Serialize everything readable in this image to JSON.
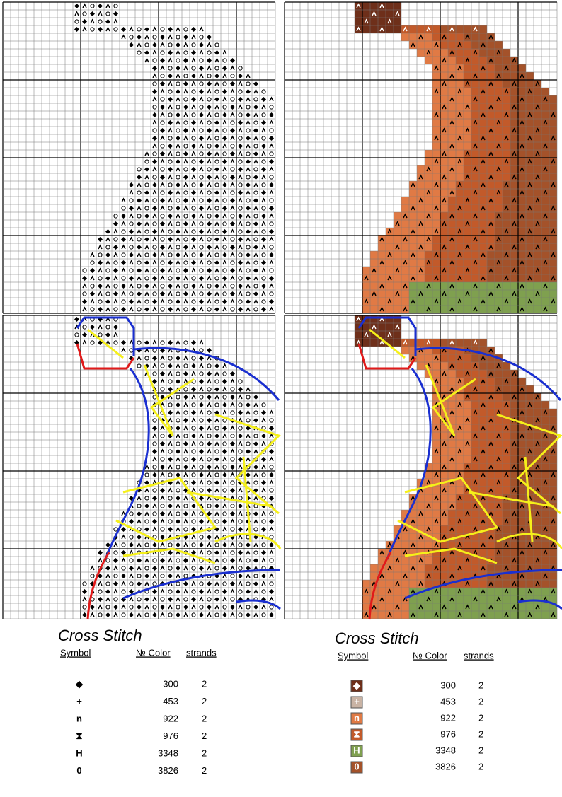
{
  "legends": [
    {
      "title": "Cross Stitch",
      "headers": [
        "Symbol",
        "№ Color",
        "strands"
      ],
      "rows": [
        {
          "symbol": "◆",
          "color": 300,
          "strands": 2
        },
        {
          "symbol": "+",
          "color": 453,
          "strands": 2
        },
        {
          "symbol": "n",
          "color": 922,
          "strands": 2
        },
        {
          "symbol": "⧗",
          "color": 976,
          "strands": 2
        },
        {
          "symbol": "H",
          "color": 3348,
          "strands": 2
        },
        {
          "symbol": "0",
          "color": 3826,
          "strands": 2
        }
      ]
    },
    {
      "title": "Cross Stitch",
      "headers": [
        "Symbol",
        "№ Color",
        "strands"
      ],
      "rows": [
        {
          "symbol": "◆",
          "swatch": "#6e2f1a",
          "color": 300,
          "strands": 2
        },
        {
          "symbol": "+",
          "swatch": "#c9b3a4",
          "color": 453,
          "strands": 2
        },
        {
          "symbol": "n",
          "swatch": "#e07a45",
          "color": 922,
          "strands": 2
        },
        {
          "symbol": "⧗",
          "swatch": "#c25a2a",
          "color": 976,
          "strands": 2
        },
        {
          "symbol": "H",
          "swatch": "#7fa04f",
          "color": 3348,
          "strands": 2
        },
        {
          "symbol": "0",
          "swatch": "#a4522a",
          "color": 3826,
          "strands": 2
        }
      ]
    }
  ]
}
